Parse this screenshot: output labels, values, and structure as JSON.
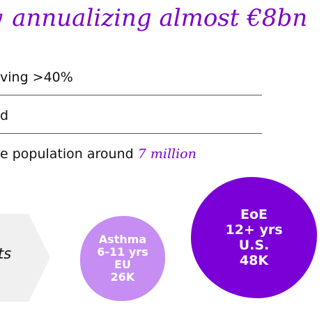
{
  "title": {
    "prefix": "y",
    "text": "annualizing almost €8bn"
  },
  "bullets": {
    "b1": "ving >40%",
    "b2": "d",
    "b3_text": "e population around ",
    "b3_accent": "7 million"
  },
  "chevron": {
    "text": "ts"
  },
  "circles": {
    "asthma": {
      "indication": "Asthma",
      "age": "6-11 yrs",
      "region": "EU",
      "patients": "26K"
    },
    "eoe": {
      "indication": "EoE",
      "age": "12+ yrs",
      "region": "U.S.",
      "patients": "48K"
    }
  },
  "colors": {
    "accent_purple": "#7a00c8",
    "eoe_circle": "#7a00d7",
    "asthma_circle": "#c68df2",
    "chevron_fill": "#f0f0f0"
  }
}
